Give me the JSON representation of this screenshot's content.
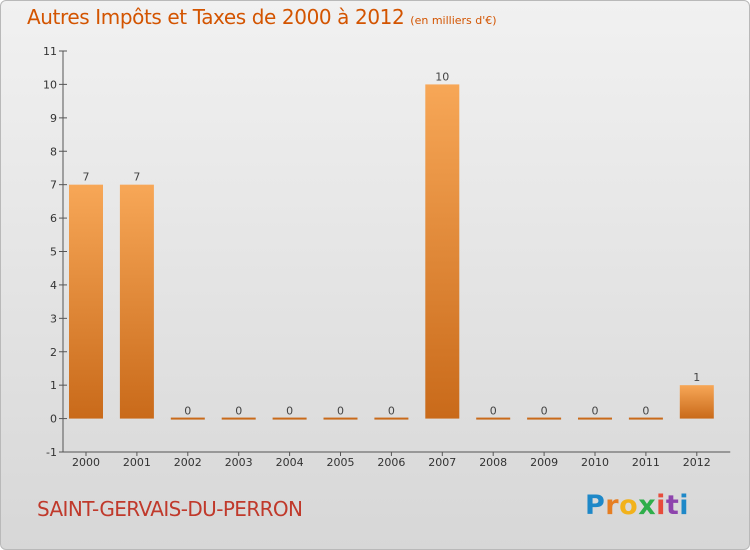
{
  "header": {
    "title": "Autres Impôts et Taxes de 2000 à 2012",
    "subtitle": "(en milliers d'€)"
  },
  "footer": {
    "commune": "SAINT-GERVAIS-DU-PERRON",
    "logo_text": "Proxiti",
    "logo_letters": [
      "P",
      "r",
      "o",
      "x",
      "i",
      "t",
      "i"
    ]
  },
  "colors": {
    "bar_light": "#f7a757",
    "bar_dark": "#c96a1a",
    "title": "#d35400",
    "commune": "#c0392b"
  },
  "chart_data": {
    "type": "bar",
    "title": "Autres Impôts et Taxes de 2000 à 2012",
    "subtitle": "(en milliers d'€)",
    "categories": [
      "2000",
      "2001",
      "2002",
      "2003",
      "2004",
      "2005",
      "2006",
      "2007",
      "2008",
      "2009",
      "2010",
      "2011",
      "2012"
    ],
    "values": [
      7,
      7,
      0,
      0,
      0,
      0,
      0,
      10,
      0,
      0,
      0,
      0,
      1
    ],
    "data_labels": [
      "7",
      "7",
      "0",
      "0",
      "0",
      "0",
      "0",
      "10",
      "0",
      "0",
      "0",
      "0",
      "1"
    ],
    "y_ticks": [
      -1,
      0,
      1,
      2,
      3,
      4,
      5,
      6,
      7,
      8,
      9,
      10,
      11
    ],
    "y_tick_labels": [
      "-1",
      "0",
      "1",
      "2",
      "3",
      "4",
      "5",
      "6",
      "7",
      "8",
      "9",
      "10",
      "11"
    ],
    "ylim": [
      -1,
      11
    ],
    "xlabel": "",
    "ylabel": "",
    "grid": false,
    "legend": "none"
  }
}
